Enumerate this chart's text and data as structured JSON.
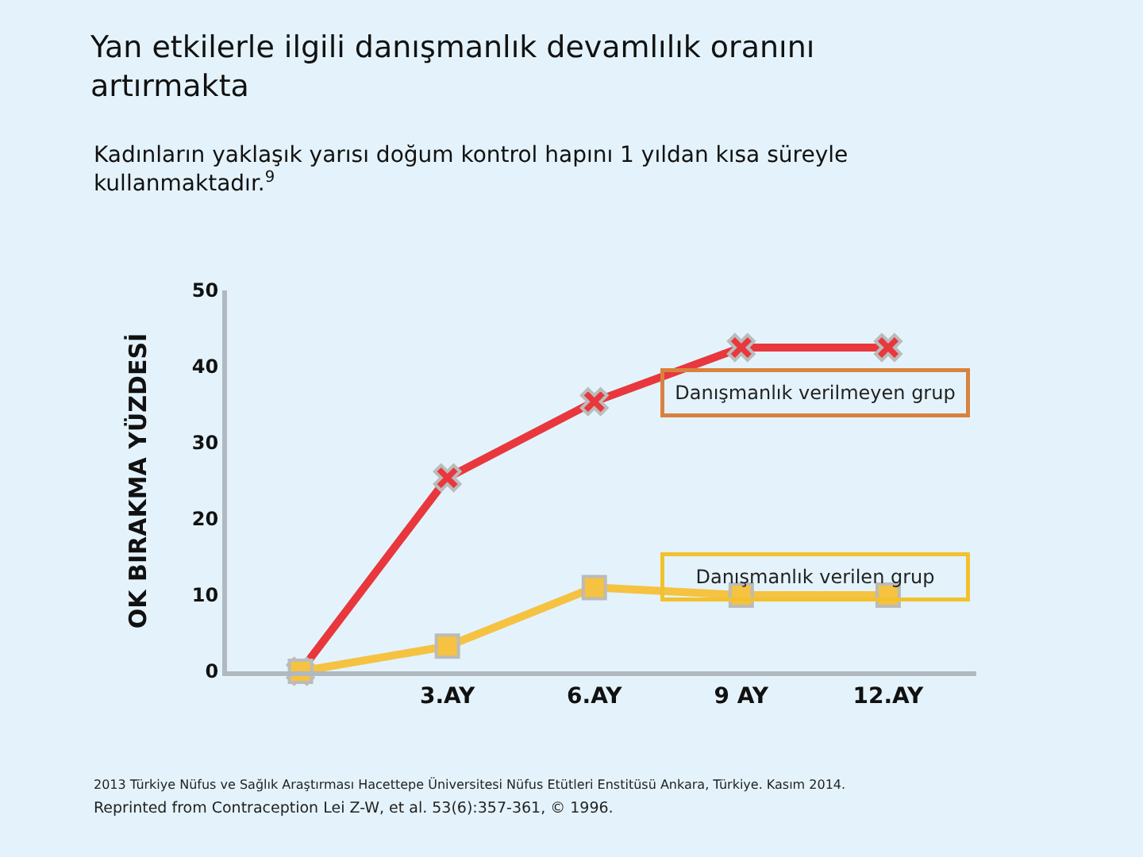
{
  "chart_data": {
    "type": "line",
    "title": "Yan etkilerle ilgili danışmanlık devamlılık oranını artırmakta",
    "subtitle": "Kadınların yaklaşık yarısı doğum kontrol hapını 1 yıldan kısa süreyle kullanmaktadır.$^{9}$",
    "ylabel": "OK BIRAKMA YÜZDESİ",
    "categories": [
      null,
      "3.AY",
      "6.AY",
      "9 AY",
      "12.AY"
    ],
    "series": [
      {
        "name": "Danışmanlık verilmeyen grup",
        "color": "#e8383d",
        "marker": "cross",
        "values": [
          0,
          25.4,
          35.4,
          42.5,
          42.5
        ]
      },
      {
        "name": "Danışmanlık verilen grup",
        "color": "#f5c242",
        "marker": "square",
        "values": [
          0,
          3.3,
          11,
          10,
          10
        ]
      }
    ],
    "ylim": [
      0,
      50
    ],
    "yticks": [
      0,
      10,
      20,
      30,
      40,
      50
    ],
    "grid": false,
    "legend": false,
    "annotations": [
      "2013 Türkiye Nüfus ve Sağlık Araştırması Hacettepe Üniversitesi Nüfus Etütleri Enstitüsü Ankara, Türkiye. Kasım 2014.",
      "Reprinted from Contraception Lei Z-W, et al. 53(6):357-361, © 1996."
    ]
  }
}
